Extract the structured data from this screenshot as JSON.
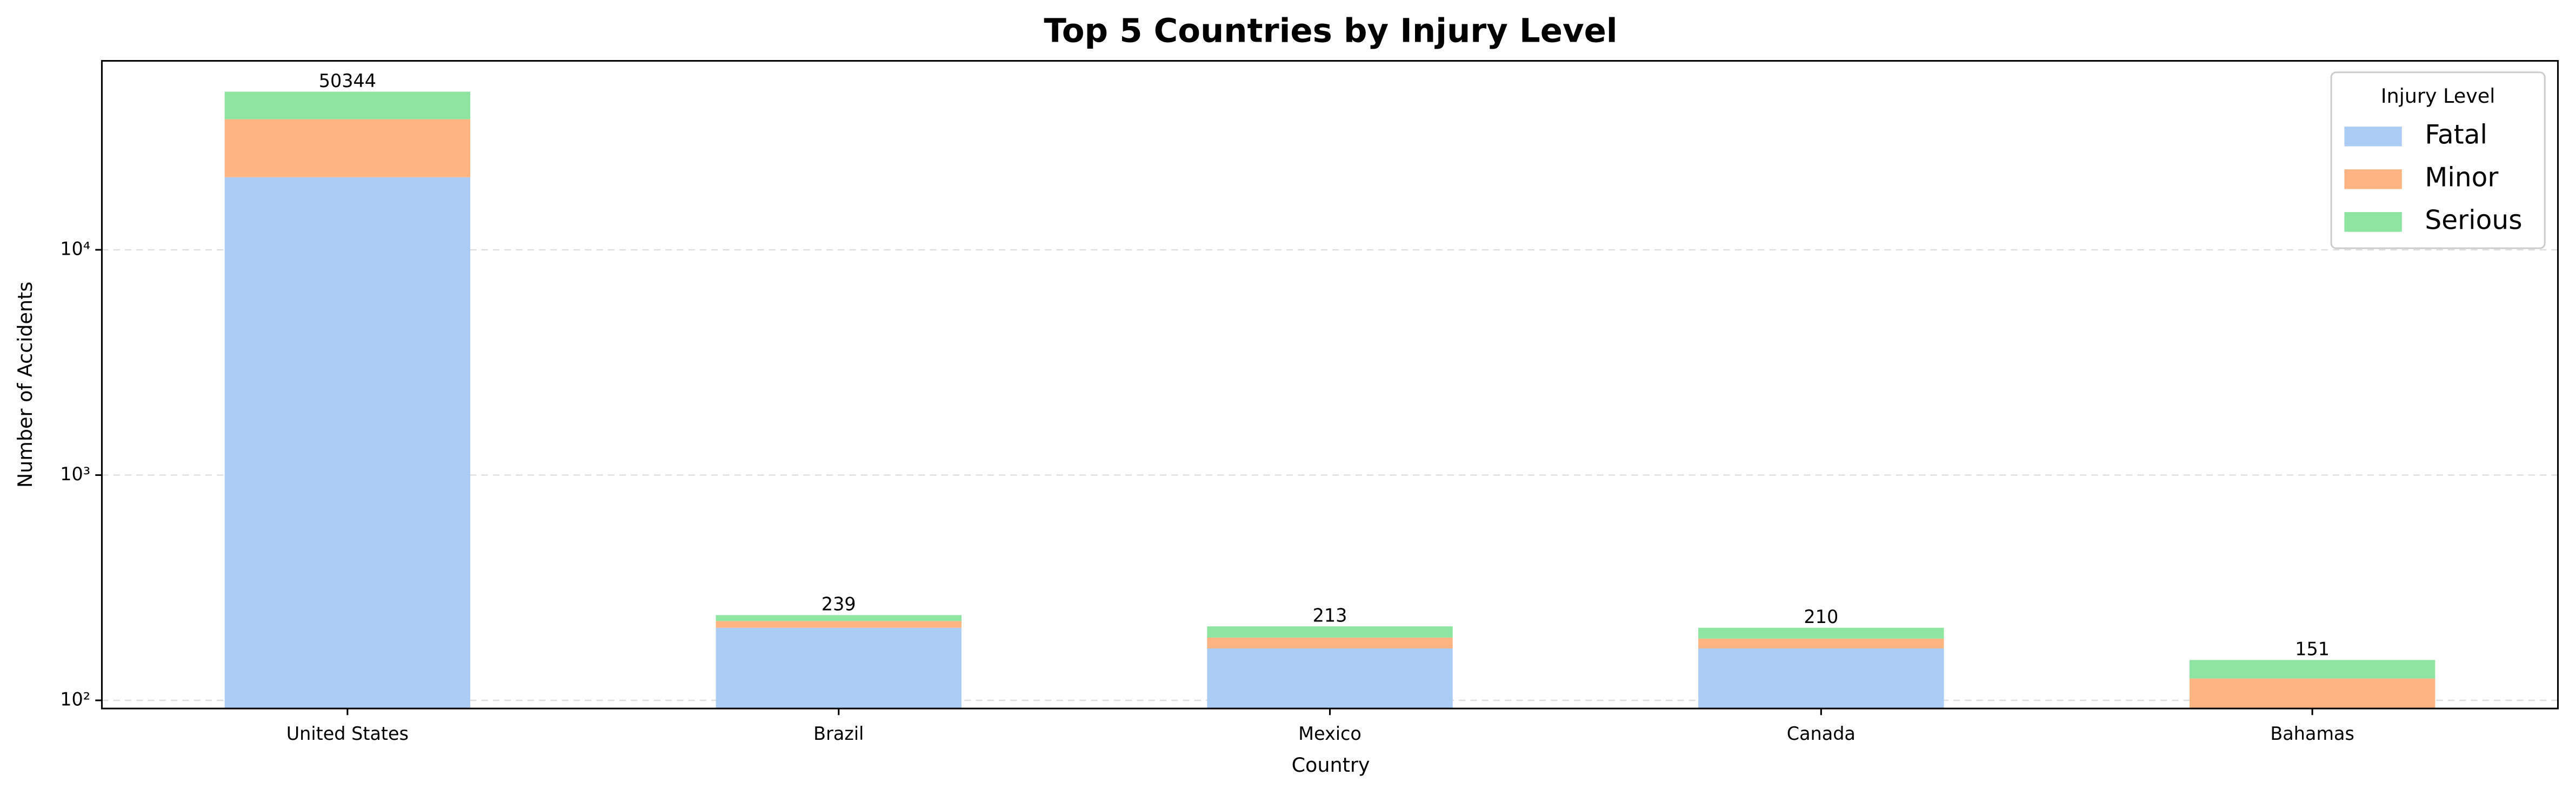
{
  "chart_data": {
    "type": "bar",
    "stacked": true,
    "title": "Top 5 Countries by Injury Level",
    "x_label": "Country",
    "y_label": "Number of Accidents",
    "categories": [
      "United States",
      "Brazil",
      "Mexico",
      "Canada",
      "Bahamas"
    ],
    "series": [
      {
        "name": "Fatal",
        "color": "#abcdf5",
        "values": [
          21000,
          210,
          170,
          170,
          0
        ]
      },
      {
        "name": "Minor",
        "color": "#ffb482",
        "values": [
          17000,
          15,
          20,
          18,
          125
        ]
      },
      {
        "name": "Serious",
        "color": "#8de5a1",
        "values": [
          12344,
          14,
          23,
          22,
          26
        ]
      }
    ],
    "totals": [
      50344,
      239,
      213,
      210,
      151
    ],
    "log_scale": true,
    "ylim": [
      92,
      69000
    ],
    "yticks": [
      {
        "value": 100,
        "label": "10²"
      },
      {
        "value": 1000,
        "label": "10³"
      },
      {
        "value": 10000,
        "label": "10⁴"
      }
    ],
    "grid": true,
    "legend_title": "Injury Level",
    "legend": "upper right"
  }
}
